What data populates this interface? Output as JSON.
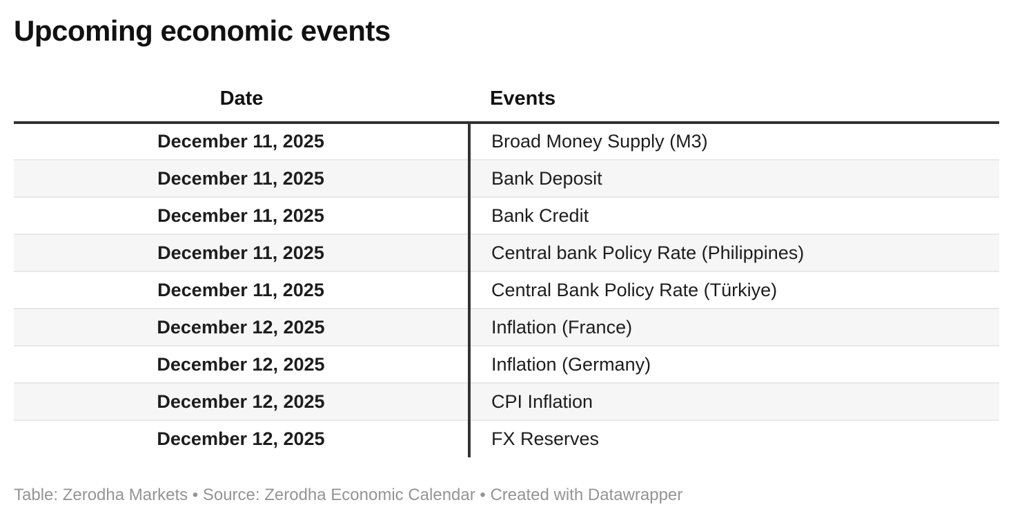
{
  "page": {
    "title": "Upcoming economic events",
    "footer": "Table: Zerodha Markets • Source: Zerodha Economic Calendar • Created with Datawrapper"
  },
  "chart_data": {
    "type": "table",
    "title": "Upcoming economic events",
    "columns": [
      "Date",
      "Events"
    ],
    "rows": [
      [
        "December 11, 2025",
        "Broad Money Supply (M3)"
      ],
      [
        "December 11, 2025",
        "Bank Deposit"
      ],
      [
        "December 11, 2025",
        "Bank Credit"
      ],
      [
        "December 11, 2025",
        "Central bank Policy Rate (Philippines)"
      ],
      [
        "December 11, 2025",
        "Central Bank Policy Rate (Türkiye)"
      ],
      [
        "December 12, 2025",
        "Inflation (France)"
      ],
      [
        "December 12, 2025",
        "Inflation (Germany)"
      ],
      [
        "December 12, 2025",
        "CPI Inflation"
      ],
      [
        "December 12, 2025",
        "FX Reserves"
      ]
    ],
    "layout": {
      "zebra_striping": true,
      "date_column_alignment": "center",
      "events_column_alignment": "left",
      "column_divider": true,
      "grid": "horizontal-only"
    }
  },
  "colors": {
    "background": "#ffffff",
    "text_strong": "#111111",
    "text_body": "#1d1d1d",
    "rule_dark": "#333333",
    "zebra_row": "#f6f6f6",
    "row_separator": "#e8e8e8",
    "footer_text": "#949494"
  }
}
